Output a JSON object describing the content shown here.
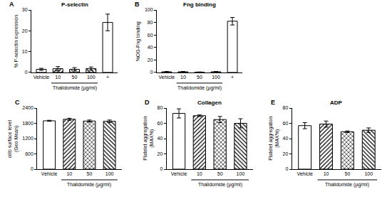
{
  "chart_data": [
    {
      "type": "bar",
      "panel_label": "A",
      "title": "P-selectin",
      "y_label": [
        "% P-selectin expression"
      ],
      "categories": [
        "Vehicle",
        "10",
        "50",
        "100",
        "+"
      ],
      "values": [
        1.5,
        1.8,
        1.5,
        1.8,
        24
      ],
      "errors": [
        0.5,
        1.0,
        0.8,
        0.8,
        4
      ],
      "group": {
        "label": "Thalidomide (μg/ml)",
        "categories": [
          "10",
          "50",
          "100"
        ]
      },
      "color": "#ffffff",
      "ylim": [
        0,
        30
      ],
      "yticks": [
        0,
        10,
        20,
        30
      ],
      "grid": false
    },
    {
      "type": "bar",
      "panel_label": "B",
      "title": "Fng binding",
      "y_label": [
        "%OG-Fng binding"
      ],
      "categories": [
        "Vehicle",
        "10",
        "50",
        "100",
        "+"
      ],
      "values": [
        1.0,
        1.0,
        0.5,
        1.0,
        82
      ],
      "errors": [
        0.5,
        0.5,
        0.3,
        0.5,
        6
      ],
      "group": {
        "label": "Thalidomide (μg/ml)",
        "categories": [
          "10",
          "50",
          "100"
        ]
      },
      "color": "#ffffff",
      "ylim": [
        0,
        100
      ],
      "yticks": [
        0,
        20,
        40,
        60,
        80,
        100
      ],
      "grid": false
    },
    {
      "type": "bar",
      "panel_label": "C",
      "y_label": [
        "αIIb surface level",
        "(Geo Mean)"
      ],
      "categories": [
        "Vehicle",
        "10",
        "50",
        "100"
      ],
      "values": [
        1900,
        1960,
        1890,
        1880
      ],
      "errors": [
        20,
        40,
        40,
        50
      ],
      "group": {
        "label": "Thalidomide (μg/ml)",
        "categories": [
          "10",
          "50",
          "100"
        ]
      },
      "color": "#ffffff",
      "ylim": [
        0,
        2400
      ],
      "yticks": [
        0,
        600,
        1200,
        1800,
        2400
      ],
      "grid": false
    },
    {
      "type": "bar",
      "panel_label": "D",
      "title": "Collagen",
      "y_label": [
        "Platelet aggregation",
        "(MAX%)"
      ],
      "categories": [
        "Vehicle",
        "10",
        "50",
        "100"
      ],
      "values": [
        73,
        70,
        65,
        60
      ],
      "errors": [
        6,
        1,
        4,
        6
      ],
      "group": {
        "label": "Thalidomide (μg/ml)",
        "categories": [
          "10",
          "50",
          "100"
        ]
      },
      "color": "#ffffff",
      "ylim": [
        0,
        80
      ],
      "yticks": [
        0,
        20,
        40,
        60,
        80
      ],
      "grid": false
    },
    {
      "type": "bar",
      "panel_label": "E",
      "title": "ADP",
      "y_label": [
        "Platelet aggregation",
        "(MAX%)"
      ],
      "categories": [
        "Vehicle",
        "10",
        "50",
        "100"
      ],
      "values": [
        57,
        59,
        49,
        51
      ],
      "errors": [
        4,
        4,
        1,
        3
      ],
      "group": {
        "label": "Thalidomide (μg/ml)",
        "categories": [
          "10",
          "50",
          "100"
        ]
      },
      "color": "#ffffff",
      "ylim": [
        0,
        80
      ],
      "yticks": [
        0,
        20,
        40,
        60,
        80
      ],
      "grid": false
    }
  ]
}
